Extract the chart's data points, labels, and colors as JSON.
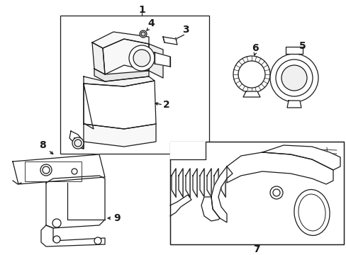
{
  "bg_color": "#ffffff",
  "lc": "#1a1a1a",
  "fig_w": 4.89,
  "fig_h": 3.6,
  "dpi": 100,
  "fs": 8.5,
  "lw": 0.9
}
